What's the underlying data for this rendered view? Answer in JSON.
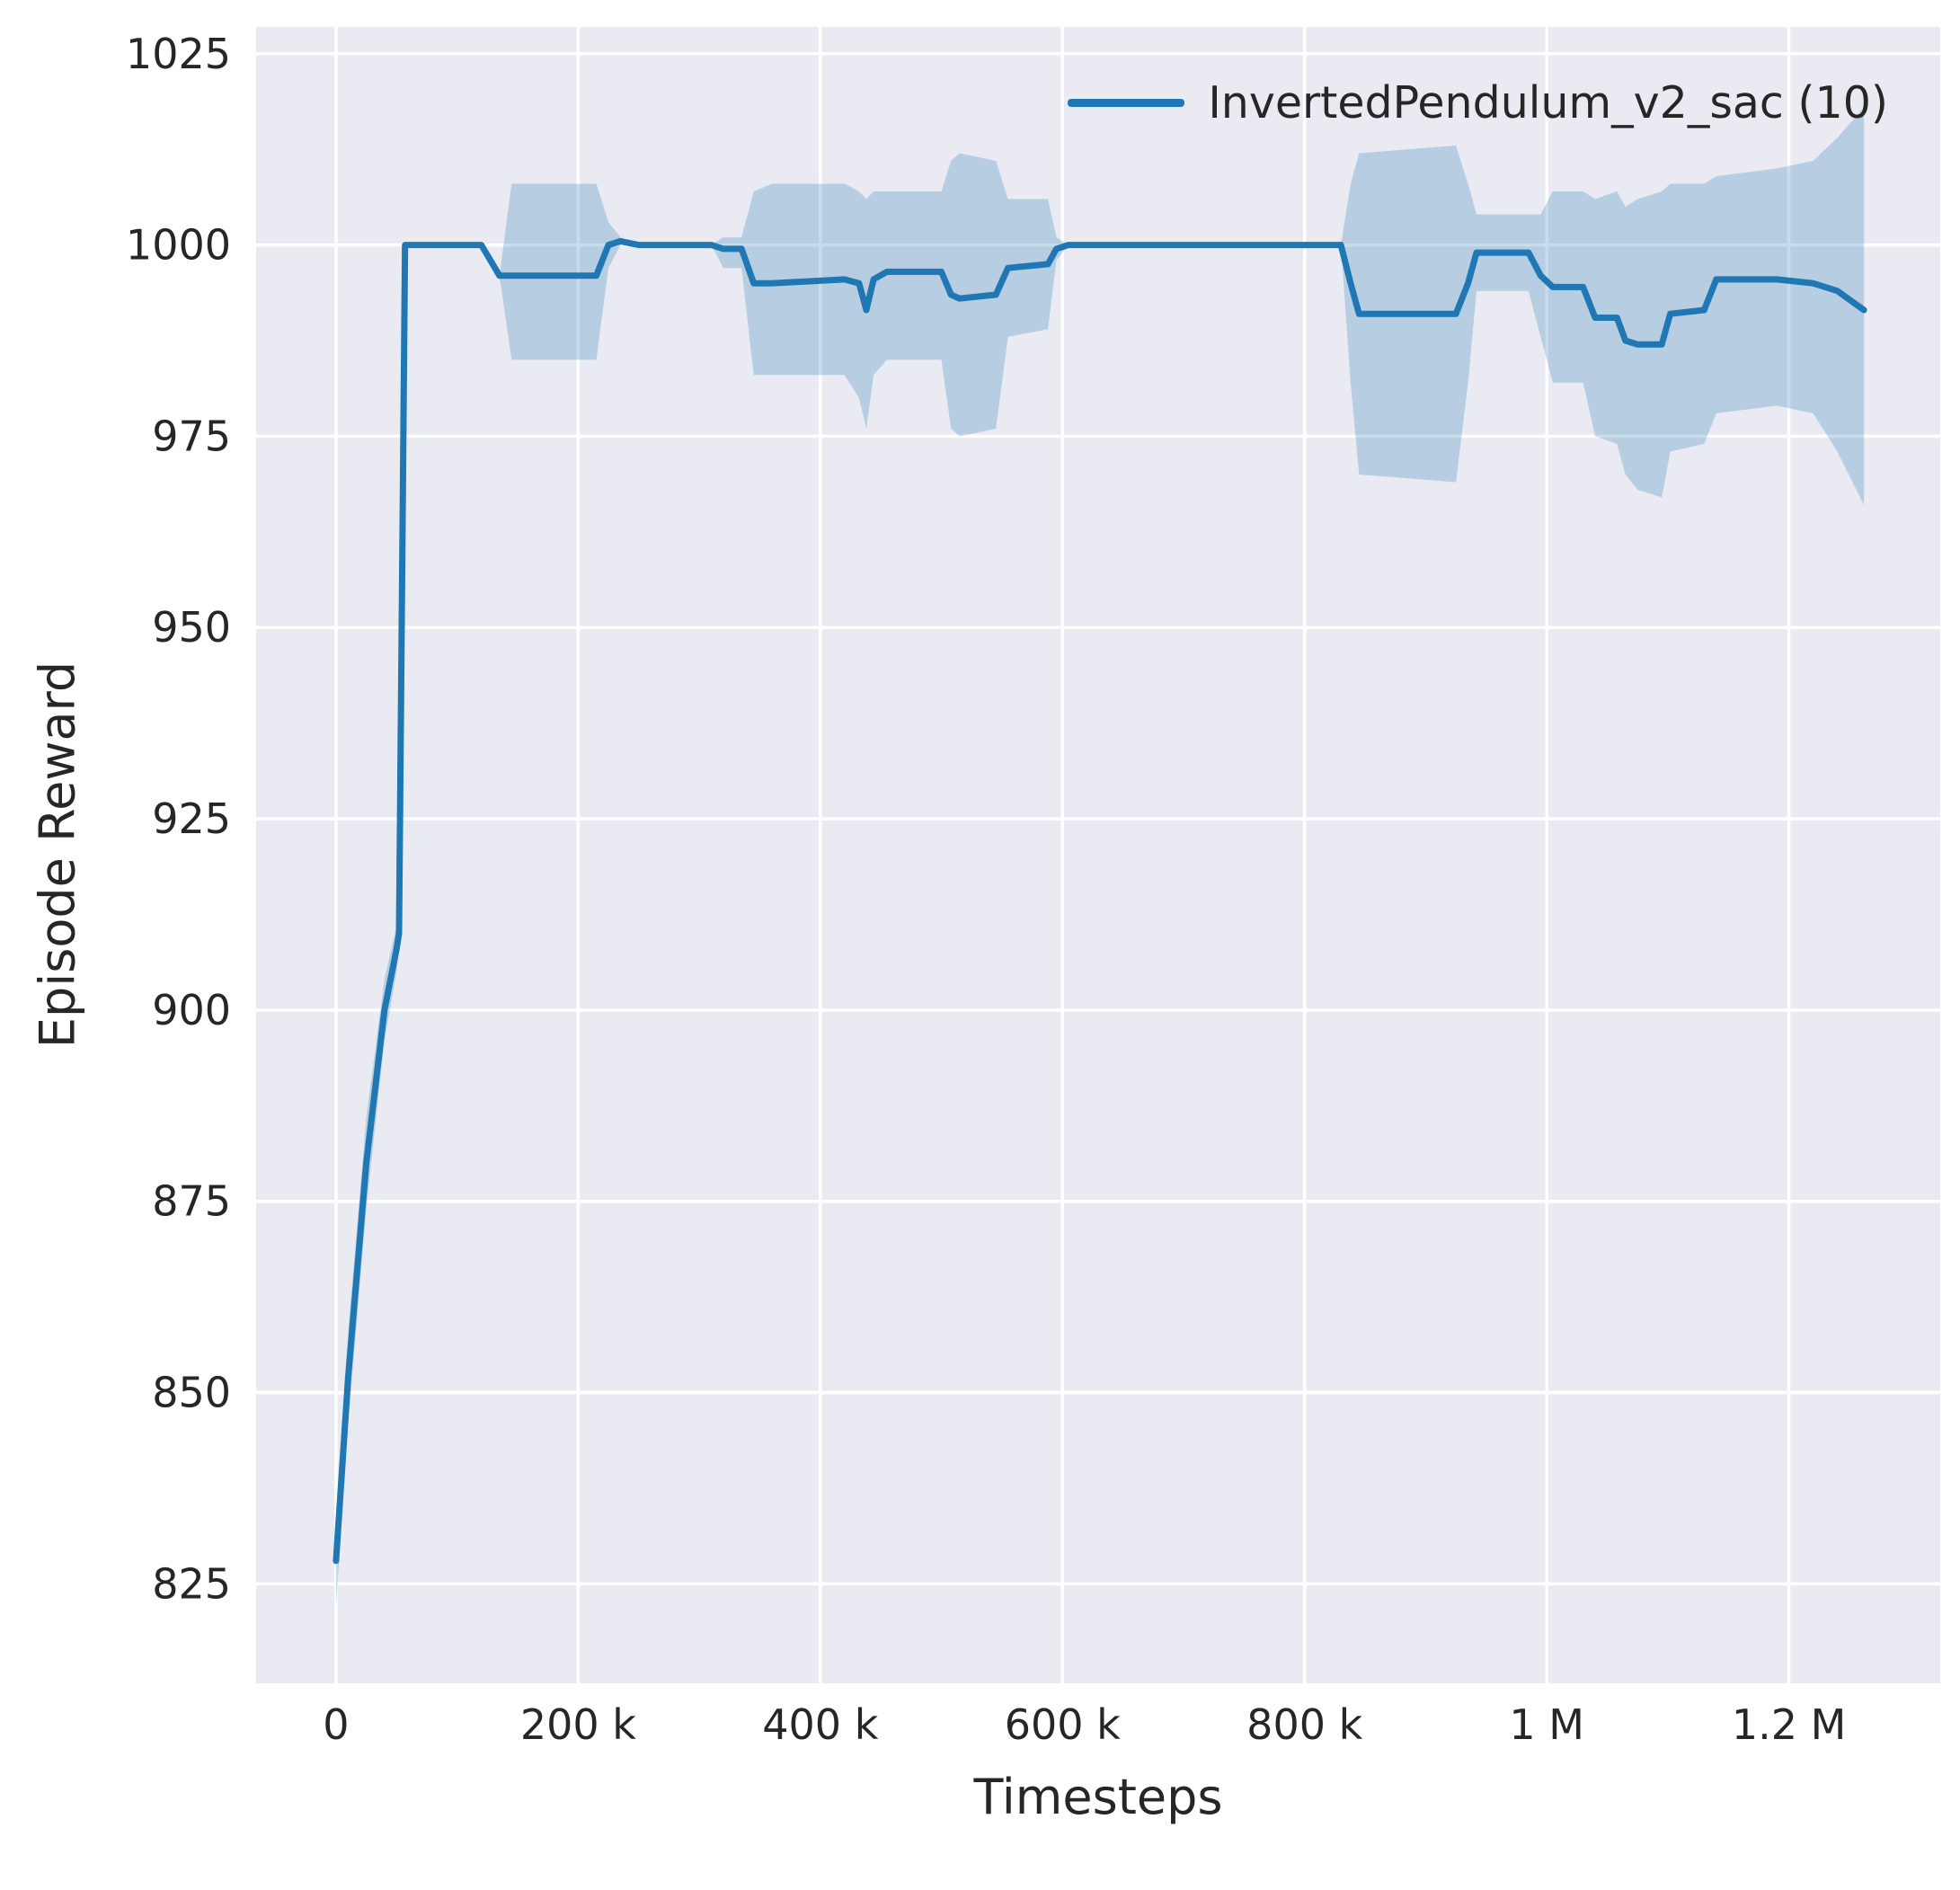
{
  "chart_data": {
    "type": "line",
    "title": "",
    "xlabel": "Timesteps",
    "ylabel": "Episode Reward",
    "xlim": [
      -66000,
      1325000
    ],
    "ylim": [
      812,
      1028.5
    ],
    "grid": true,
    "legend_position": "upper right",
    "colors": {
      "figure_background": "#ffffff",
      "plot_background": "#eaeaf2",
      "grid": "#ffffff",
      "text": "#262626",
      "line": "#1f77b4",
      "band_opacity": 0.25
    },
    "x_ticks": [
      {
        "value": 0,
        "label": "0"
      },
      {
        "value": 200000,
        "label": "200 k"
      },
      {
        "value": 400000,
        "label": "400 k"
      },
      {
        "value": 600000,
        "label": "600 k"
      },
      {
        "value": 800000,
        "label": "800 k"
      },
      {
        "value": 1000000,
        "label": "1 M"
      },
      {
        "value": 1200000,
        "label": "1.2 M"
      }
    ],
    "y_ticks": [
      {
        "value": 825,
        "label": "825"
      },
      {
        "value": 850,
        "label": "850"
      },
      {
        "value": 875,
        "label": "875"
      },
      {
        "value": 900,
        "label": "900"
      },
      {
        "value": 925,
        "label": "925"
      },
      {
        "value": 950,
        "label": "950"
      },
      {
        "value": 975,
        "label": "975"
      },
      {
        "value": 1000,
        "label": "1000"
      },
      {
        "value": 1025,
        "label": "1025"
      }
    ],
    "series": [
      {
        "name": "InvertedPendulum_v2_sac (10)",
        "color": "#1f77b4",
        "x": [
          0,
          10000,
          25000,
          40000,
          50000,
          52000,
          57000,
          120000,
          135000,
          145000,
          215000,
          225000,
          235000,
          250000,
          310000,
          320000,
          335000,
          345000,
          360000,
          420000,
          432000,
          438000,
          444000,
          455000,
          500000,
          508000,
          515000,
          545000,
          555000,
          588000,
          595000,
          605000,
          830000,
          838000,
          845000,
          925000,
          935000,
          942000,
          985000,
          995000,
          1005000,
          1030000,
          1040000,
          1058000,
          1065000,
          1075000,
          1095000,
          1102000,
          1130000,
          1140000,
          1190000,
          1220000,
          1240000,
          1262000
        ],
        "mean": [
          828,
          852,
          880,
          900,
          908,
          910,
          1000,
          1000,
          996,
          996,
          996,
          1000,
          1000.5,
          1000,
          1000,
          999.5,
          999.5,
          995,
          995,
          995.5,
          995,
          991.5,
          995.5,
          996.5,
          996.5,
          993.5,
          993,
          993.5,
          997,
          997.5,
          999.5,
          1000,
          1000,
          995,
          991,
          991,
          995,
          999,
          999,
          996,
          994.5,
          994.5,
          990.5,
          990.5,
          987.5,
          987,
          987,
          991,
          991.5,
          995.5,
          995.5,
          995,
          994,
          991.5
        ],
        "band_low": [
          822,
          846,
          874,
          896,
          905,
          908,
          1000,
          1000,
          996,
          985,
          985,
          997,
          1000,
          1000,
          1000,
          997,
          997,
          983,
          983,
          983,
          980,
          976,
          983,
          985,
          985,
          976,
          975,
          976,
          988,
          989,
          998,
          1000,
          1000,
          982,
          970,
          969,
          982,
          994,
          994,
          988,
          982,
          982,
          975,
          974,
          970,
          968,
          967,
          973,
          974,
          978,
          979,
          978,
          973,
          966
        ],
        "band_high": [
          834,
          858,
          886,
          904,
          911,
          912,
          1000,
          1000,
          996,
          1008,
          1008,
          1003,
          1001,
          1000,
          1000,
          1001,
          1001,
          1007,
          1008,
          1008,
          1007,
          1006,
          1007,
          1007,
          1007,
          1011,
          1012,
          1011,
          1006,
          1006,
          1001,
          1000,
          1000,
          1008,
          1012,
          1013,
          1008,
          1004,
          1004,
          1004,
          1007,
          1007,
          1006,
          1007,
          1005,
          1006,
          1007,
          1008,
          1008,
          1009,
          1010,
          1011,
          1014,
          1018
        ]
      }
    ]
  }
}
